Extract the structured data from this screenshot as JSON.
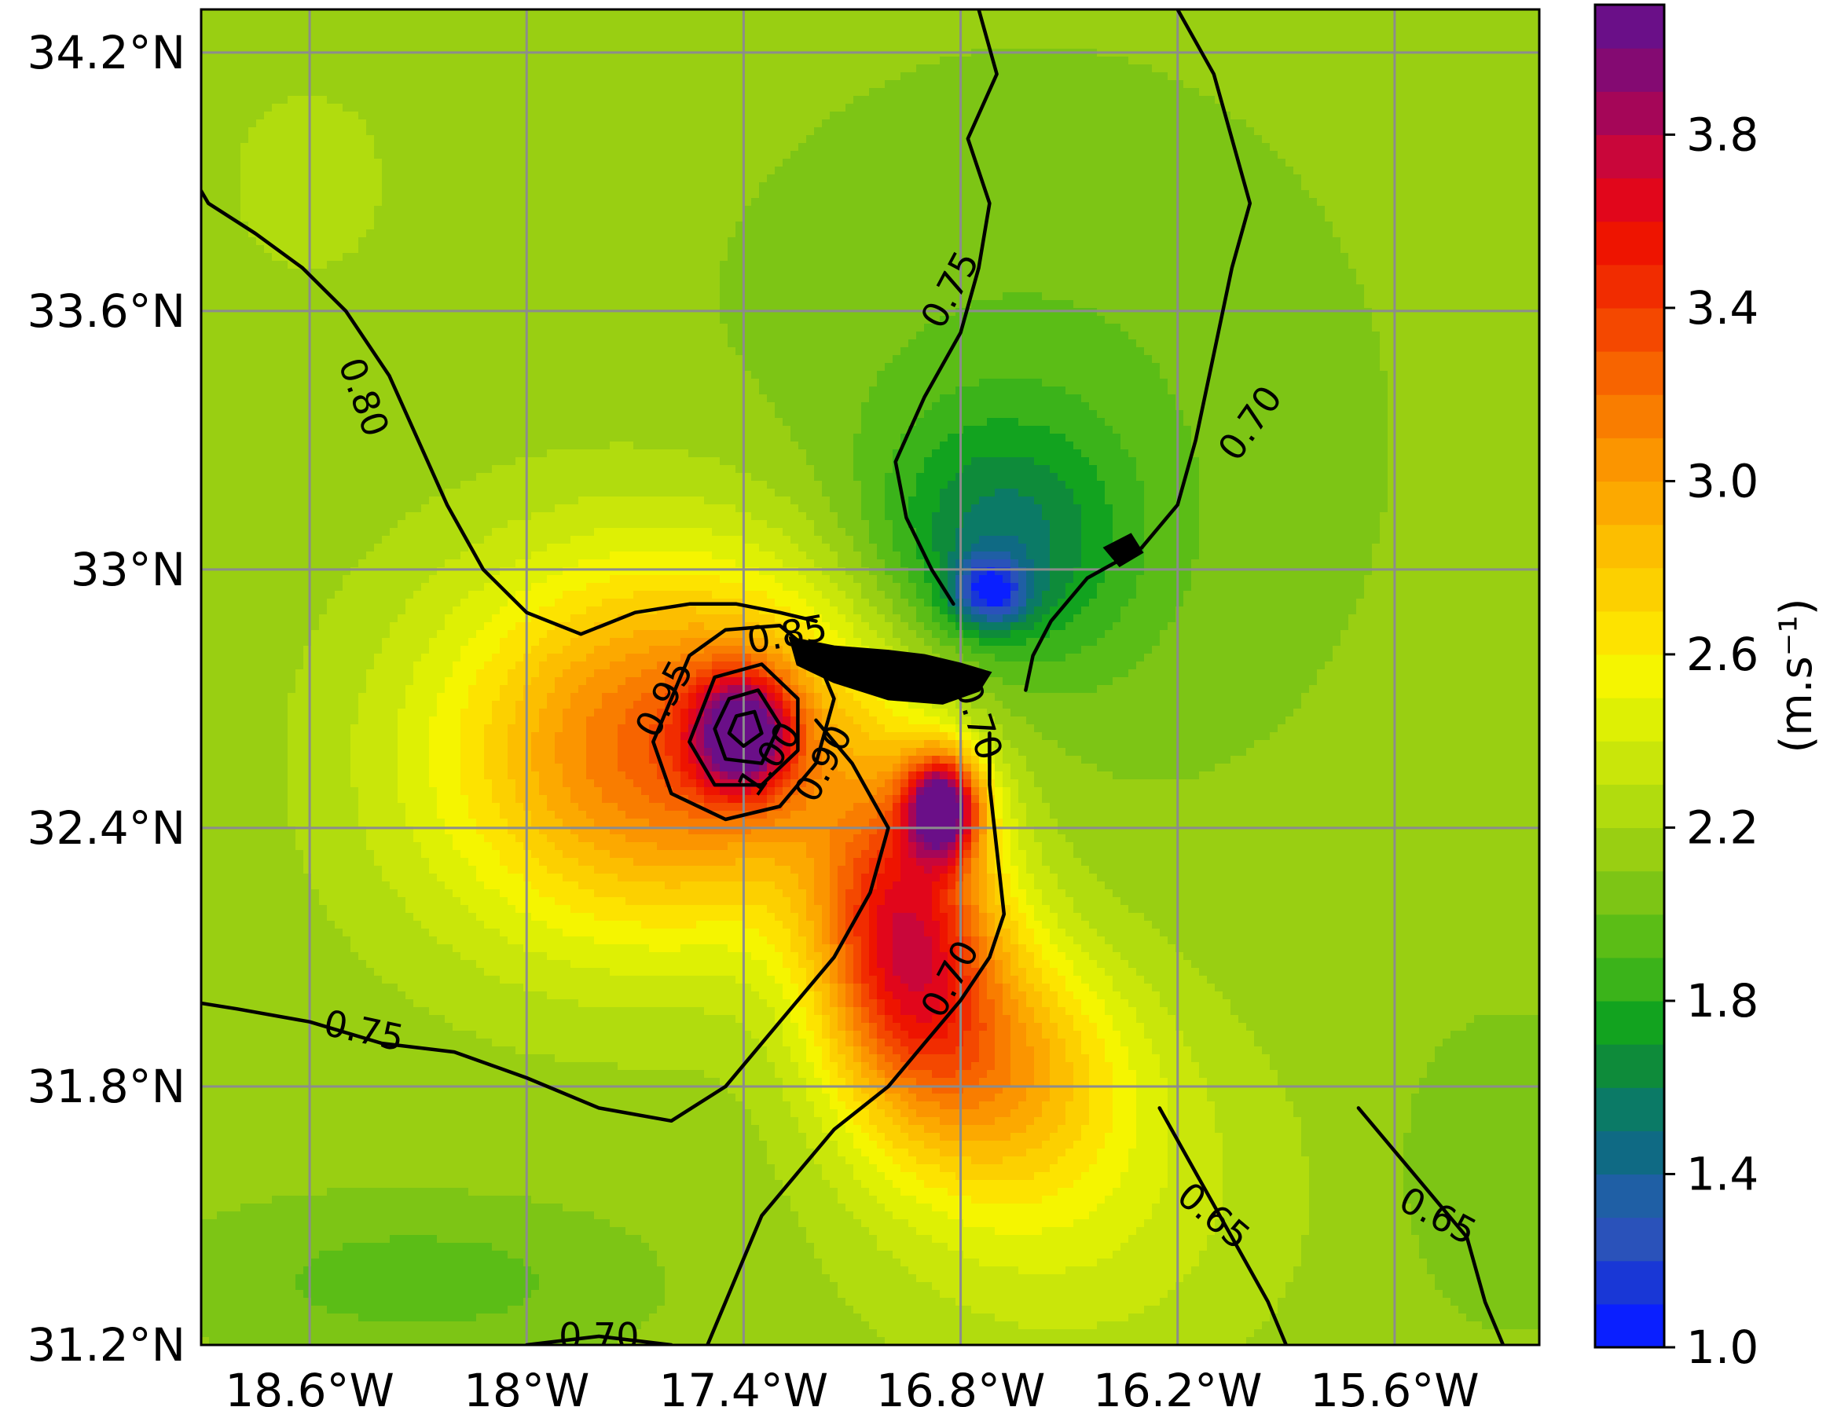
{
  "chart_data": {
    "type": "heatmap",
    "title": "",
    "map_extent": {
      "lon_min": -18.9,
      "lon_max": -15.2,
      "lat_min": 31.2,
      "lat_max": 34.3
    },
    "x_ticks": [
      {
        "value": -18.6,
        "label": "18.6°W"
      },
      {
        "value": -18.0,
        "label": "18°W"
      },
      {
        "value": -17.4,
        "label": "17.4°W"
      },
      {
        "value": -16.8,
        "label": "16.8°W"
      },
      {
        "value": -16.2,
        "label": "16.2°W"
      },
      {
        "value": -15.6,
        "label": "15.6°W"
      }
    ],
    "y_ticks": [
      {
        "value": 34.2,
        "label": "34.2°N"
      },
      {
        "value": 33.6,
        "label": "33.6°N"
      },
      {
        "value": 33.0,
        "label": "33°N"
      },
      {
        "value": 32.4,
        "label": "32.4°N"
      },
      {
        "value": 31.8,
        "label": "31.8°N"
      },
      {
        "value": 31.2,
        "label": "31.2°N"
      }
    ],
    "grid": true,
    "colorbar": {
      "label": "(m.s⁻¹)",
      "min": 1.0,
      "max": 4.1,
      "ticks": [
        {
          "value": 1.0,
          "label": "1.0"
        },
        {
          "value": 1.4,
          "label": "1.4"
        },
        {
          "value": 1.8,
          "label": "1.8"
        },
        {
          "value": 2.2,
          "label": "2.2"
        },
        {
          "value": 2.6,
          "label": "2.6"
        },
        {
          "value": 3.0,
          "label": "3.0"
        },
        {
          "value": 3.4,
          "label": "3.4"
        },
        {
          "value": 3.8,
          "label": "3.8"
        }
      ],
      "colors": [
        "#0a1fff",
        "#1937d6",
        "#2a52ba",
        "#1f5fa5",
        "#0f6a84",
        "#0b7a66",
        "#0e8b3a",
        "#12a31f",
        "#3bb31a",
        "#5bbd16",
        "#7dc515",
        "#99cf12",
        "#b1dc0e",
        "#c9e60a",
        "#def004",
        "#f5f500",
        "#fde300",
        "#fcd000",
        "#fcbe00",
        "#fca900",
        "#fb9500",
        "#f97d00",
        "#f76400",
        "#f44800",
        "#f12c00",
        "#ee1400",
        "#e1061b",
        "#c9063a",
        "#a50658",
        "#840a72",
        "#6a0f88"
      ]
    },
    "field": {
      "background_value": 2.12,
      "features": [
        {
          "lon": -17.5,
          "lat": 32.6,
          "value": 3.2,
          "spread_lon": 0.55,
          "spread_lat": 0.42
        },
        {
          "lon": -17.4,
          "lat": 32.62,
          "value": 3.6,
          "spread_lon": 0.14,
          "spread_lat": 0.14
        },
        {
          "lon": -17.9,
          "lat": 32.55,
          "value": 2.55,
          "spread_lon": 0.6,
          "spread_lat": 0.5
        },
        {
          "lon": -16.95,
          "lat": 32.15,
          "value": 3.7,
          "spread_lon": 0.25,
          "spread_lat": 0.35
        },
        {
          "lon": -16.85,
          "lat": 32.45,
          "value": 4.0,
          "spread_lon": 0.1,
          "spread_lat": 0.12
        },
        {
          "lon": -16.7,
          "lat": 31.85,
          "value": 2.9,
          "spread_lon": 0.35,
          "spread_lat": 0.3
        },
        {
          "lon": -16.5,
          "lat": 31.55,
          "value": 2.45,
          "spread_lon": 0.6,
          "spread_lat": 0.45
        },
        {
          "lon": -16.7,
          "lat": 33.05,
          "value": 1.55,
          "spread_lon": 0.35,
          "spread_lat": 0.3
        },
        {
          "lon": -16.72,
          "lat": 32.95,
          "value": 1.3,
          "spread_lon": 0.1,
          "spread_lat": 0.08
        },
        {
          "lon": -16.6,
          "lat": 33.3,
          "value": 1.95,
          "spread_lon": 0.7,
          "spread_lat": 0.65
        },
        {
          "lon": -18.6,
          "lat": 33.9,
          "value": 2.25,
          "spread_lon": 0.35,
          "spread_lat": 0.35
        },
        {
          "lon": -18.3,
          "lat": 31.35,
          "value": 1.9,
          "spread_lon": 0.5,
          "spread_lat": 0.15
        },
        {
          "lon": -15.3,
          "lat": 31.6,
          "value": 2.0,
          "spread_lon": 0.3,
          "spread_lat": 0.3
        }
      ]
    },
    "contours": [
      {
        "label": "0.80",
        "points": [
          [
            -18.95,
            33.95
          ],
          [
            -18.88,
            33.85
          ],
          [
            -18.75,
            33.78
          ],
          [
            -18.62,
            33.7
          ],
          [
            -18.5,
            33.6
          ],
          [
            -18.38,
            33.45
          ],
          [
            -18.3,
            33.3
          ],
          [
            -18.22,
            33.15
          ],
          [
            -18.12,
            33.0
          ],
          [
            -18.0,
            32.9
          ],
          [
            -17.85,
            32.85
          ],
          [
            -17.7,
            32.9
          ],
          [
            -17.55,
            32.92
          ],
          [
            -17.42,
            32.92
          ],
          [
            -17.3,
            32.9
          ],
          [
            -17.2,
            32.88
          ]
        ]
      },
      {
        "label": "0.75",
        "points": [
          [
            -16.75,
            34.3
          ],
          [
            -16.7,
            34.15
          ],
          [
            -16.78,
            34.0
          ],
          [
            -16.72,
            33.85
          ],
          [
            -16.75,
            33.7
          ],
          [
            -16.8,
            33.55
          ],
          [
            -16.9,
            33.4
          ],
          [
            -16.98,
            33.25
          ],
          [
            -16.95,
            33.12
          ],
          [
            -16.88,
            33.0
          ],
          [
            -16.82,
            32.92
          ]
        ]
      },
      {
        "label": "0.70",
        "points": [
          [
            -16.2,
            34.3
          ],
          [
            -16.1,
            34.15
          ],
          [
            -16.05,
            34.0
          ],
          [
            -16.0,
            33.85
          ],
          [
            -16.05,
            33.7
          ],
          [
            -16.1,
            33.5
          ],
          [
            -16.15,
            33.3
          ],
          [
            -16.2,
            33.15
          ],
          [
            -16.3,
            33.05
          ],
          [
            -16.45,
            32.98
          ],
          [
            -16.55,
            32.88
          ],
          [
            -16.6,
            32.8
          ],
          [
            -16.62,
            32.72
          ]
        ]
      },
      {
        "label": "0.75",
        "points": [
          [
            -18.95,
            32.0
          ],
          [
            -18.8,
            31.98
          ],
          [
            -18.6,
            31.95
          ],
          [
            -18.4,
            31.9
          ],
          [
            -18.2,
            31.88
          ],
          [
            -18.0,
            31.82
          ],
          [
            -17.8,
            31.75
          ],
          [
            -17.6,
            31.72
          ],
          [
            -17.45,
            31.8
          ],
          [
            -17.3,
            31.95
          ],
          [
            -17.15,
            32.1
          ],
          [
            -17.05,
            32.25
          ],
          [
            -17.0,
            32.4
          ],
          [
            -17.1,
            32.55
          ],
          [
            -17.2,
            32.65
          ]
        ]
      },
      {
        "label": "0.70",
        "points": [
          [
            -17.5,
            31.2
          ],
          [
            -17.45,
            31.3
          ],
          [
            -17.4,
            31.4
          ],
          [
            -17.35,
            31.5
          ],
          [
            -17.25,
            31.6
          ],
          [
            -17.15,
            31.7
          ],
          [
            -17.0,
            31.8
          ],
          [
            -16.9,
            31.9
          ],
          [
            -16.8,
            32.0
          ],
          [
            -16.72,
            32.1
          ],
          [
            -16.68,
            32.2
          ],
          [
            -16.7,
            32.35
          ],
          [
            -16.72,
            32.5
          ],
          [
            -16.72,
            32.62
          ]
        ]
      },
      {
        "label": "0.70",
        "points": [
          [
            -18.0,
            31.2
          ],
          [
            -17.8,
            31.22
          ],
          [
            -17.6,
            31.2
          ]
        ]
      },
      {
        "label": "0.85",
        "points": [
          [
            -17.55,
            32.8
          ],
          [
            -17.45,
            32.86
          ],
          [
            -17.3,
            32.87
          ],
          [
            -17.2,
            32.8
          ],
          [
            -17.15,
            32.7
          ],
          [
            -17.2,
            32.55
          ],
          [
            -17.3,
            32.45
          ],
          [
            -17.45,
            32.42
          ],
          [
            -17.6,
            32.48
          ],
          [
            -17.65,
            32.6
          ],
          [
            -17.55,
            32.8
          ]
        ]
      },
      {
        "label": "0.90",
        "points": [
          [
            -17.48,
            32.75
          ],
          [
            -17.35,
            32.78
          ],
          [
            -17.25,
            32.7
          ],
          [
            -17.25,
            32.58
          ],
          [
            -17.35,
            32.5
          ],
          [
            -17.48,
            32.5
          ],
          [
            -17.55,
            32.6
          ],
          [
            -17.48,
            32.75
          ]
        ]
      },
      {
        "label": "0.95",
        "points": [
          [
            -17.44,
            32.7
          ],
          [
            -17.36,
            32.72
          ],
          [
            -17.3,
            32.64
          ],
          [
            -17.35,
            32.55
          ],
          [
            -17.45,
            32.56
          ],
          [
            -17.48,
            32.63
          ],
          [
            -17.44,
            32.7
          ]
        ]
      },
      {
        "label": "1.00",
        "points": [
          [
            -17.42,
            32.66
          ],
          [
            -17.37,
            32.67
          ],
          [
            -17.35,
            32.62
          ],
          [
            -17.4,
            32.59
          ],
          [
            -17.44,
            32.62
          ],
          [
            -17.42,
            32.66
          ]
        ]
      },
      {
        "label": "0.65",
        "points": [
          [
            -16.25,
            31.75
          ],
          [
            -16.15,
            31.6
          ],
          [
            -16.05,
            31.45
          ],
          [
            -15.95,
            31.3
          ],
          [
            -15.9,
            31.2
          ]
        ]
      },
      {
        "label": "0.65",
        "points": [
          [
            -15.7,
            31.75
          ],
          [
            -15.55,
            31.6
          ],
          [
            -15.4,
            31.45
          ],
          [
            -15.35,
            31.3
          ],
          [
            -15.3,
            31.2
          ]
        ]
      }
    ],
    "contour_labels": [
      {
        "text": "0.80",
        "lon": -18.45,
        "lat": 33.4,
        "angle": 70
      },
      {
        "text": "0.75",
        "lon": -16.83,
        "lat": 33.65,
        "angle": -62
      },
      {
        "text": "0.70",
        "lon": -16.0,
        "lat": 33.34,
        "angle": -55
      },
      {
        "text": "0.75",
        "lon": -18.45,
        "lat": 31.93,
        "angle": 12
      },
      {
        "text": "0.70",
        "lon": -16.75,
        "lat": 32.65,
        "angle": 72
      },
      {
        "text": "0.70",
        "lon": -16.83,
        "lat": 32.05,
        "angle": -62
      },
      {
        "text": "0.95",
        "lon": -17.62,
        "lat": 32.7,
        "angle": -62
      },
      {
        "text": "0.85",
        "lon": -17.28,
        "lat": 32.85,
        "angle": -10
      },
      {
        "text": "1.00",
        "lon": -17.33,
        "lat": 32.56,
        "angle": -55
      },
      {
        "text": "0.90",
        "lon": -17.18,
        "lat": 32.55,
        "angle": -62
      },
      {
        "text": "0.65",
        "lon": -16.1,
        "lat": 31.5,
        "angle": 40
      },
      {
        "text": "0.65",
        "lon": -15.48,
        "lat": 31.5,
        "angle": 28
      },
      {
        "text": "0.70",
        "lon": -17.8,
        "lat": 31.22,
        "angle": 0
      }
    ],
    "islands": [
      {
        "points": [
          [
            -17.27,
            32.84
          ],
          [
            -17.15,
            32.82
          ],
          [
            -17.0,
            32.81
          ],
          [
            -16.9,
            32.8
          ],
          [
            -16.8,
            32.78
          ],
          [
            -16.72,
            32.76
          ],
          [
            -16.75,
            32.72
          ],
          [
            -16.85,
            32.69
          ],
          [
            -17.0,
            32.7
          ],
          [
            -17.15,
            32.74
          ],
          [
            -17.25,
            32.78
          ],
          [
            -17.27,
            32.84
          ]
        ]
      },
      {
        "points": [
          [
            -16.4,
            33.05
          ],
          [
            -16.33,
            33.08
          ],
          [
            -16.3,
            33.04
          ],
          [
            -16.36,
            33.01
          ],
          [
            -16.4,
            33.05
          ]
        ]
      }
    ]
  }
}
